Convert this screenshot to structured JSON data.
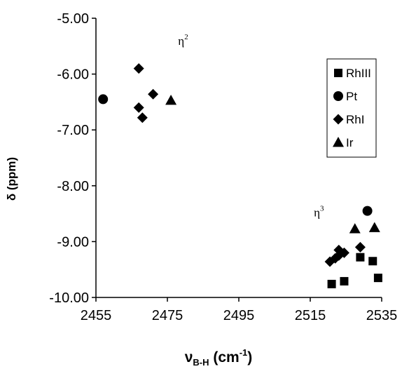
{
  "chart_data": {
    "type": "scatter",
    "xlabel": {
      "main": "ν",
      "sub": "B-H",
      "units_pre": " (cm",
      "units_sup": "-1",
      "units_post": ")"
    },
    "ylabel": "δ (ppm)",
    "xlim": [
      2455,
      2535
    ],
    "ylim": [
      -10,
      -5
    ],
    "x_ticks": [
      2455,
      2475,
      2495,
      2515,
      2535
    ],
    "y_ticks": [
      -5,
      -6,
      -7,
      -8,
      -9,
      -10
    ],
    "x_tick_labels": [
      "2455",
      "2475",
      "2495",
      "2515",
      "2535"
    ],
    "y_tick_labels": [
      "-5.00",
      "-6.00",
      "-7.00",
      "-8.00",
      "-9.00",
      "-10.00"
    ],
    "grid": false,
    "legend_position": "top-right",
    "series": [
      {
        "name": "RhIII",
        "marker": "square",
        "color": "#000000",
        "points": [
          [
            2521,
            -9.76
          ],
          [
            2524.5,
            -9.71
          ],
          [
            2529,
            -9.28
          ],
          [
            2532.5,
            -9.35
          ],
          [
            2534,
            -9.65
          ]
        ]
      },
      {
        "name": "Pt",
        "marker": "circle",
        "color": "#000000",
        "points": [
          [
            2457,
            -6.45
          ],
          [
            2531,
            -8.45
          ]
        ]
      },
      {
        "name": "RhI",
        "marker": "diamond",
        "color": "#000000",
        "points": [
          [
            2467,
            -5.9
          ],
          [
            2467,
            -6.6
          ],
          [
            2468,
            -6.78
          ],
          [
            2471,
            -6.36
          ],
          [
            2520.5,
            -9.36
          ],
          [
            2522,
            -9.3
          ],
          [
            2523,
            -9.25
          ],
          [
            2523,
            -9.15
          ],
          [
            2524.5,
            -9.2
          ],
          [
            2529,
            -9.1
          ]
        ]
      },
      {
        "name": "Ir",
        "marker": "triangle",
        "color": "#000000",
        "points": [
          [
            2476,
            -6.47
          ],
          [
            2527.5,
            -8.77
          ],
          [
            2533,
            -8.75
          ]
        ]
      }
    ],
    "annotations": [
      {
        "base": "η",
        "sup": "2",
        "x": 2478,
        "y": -5.48
      },
      {
        "base": "η",
        "sup": "3",
        "x": 2516,
        "y": -8.55
      }
    ]
  }
}
